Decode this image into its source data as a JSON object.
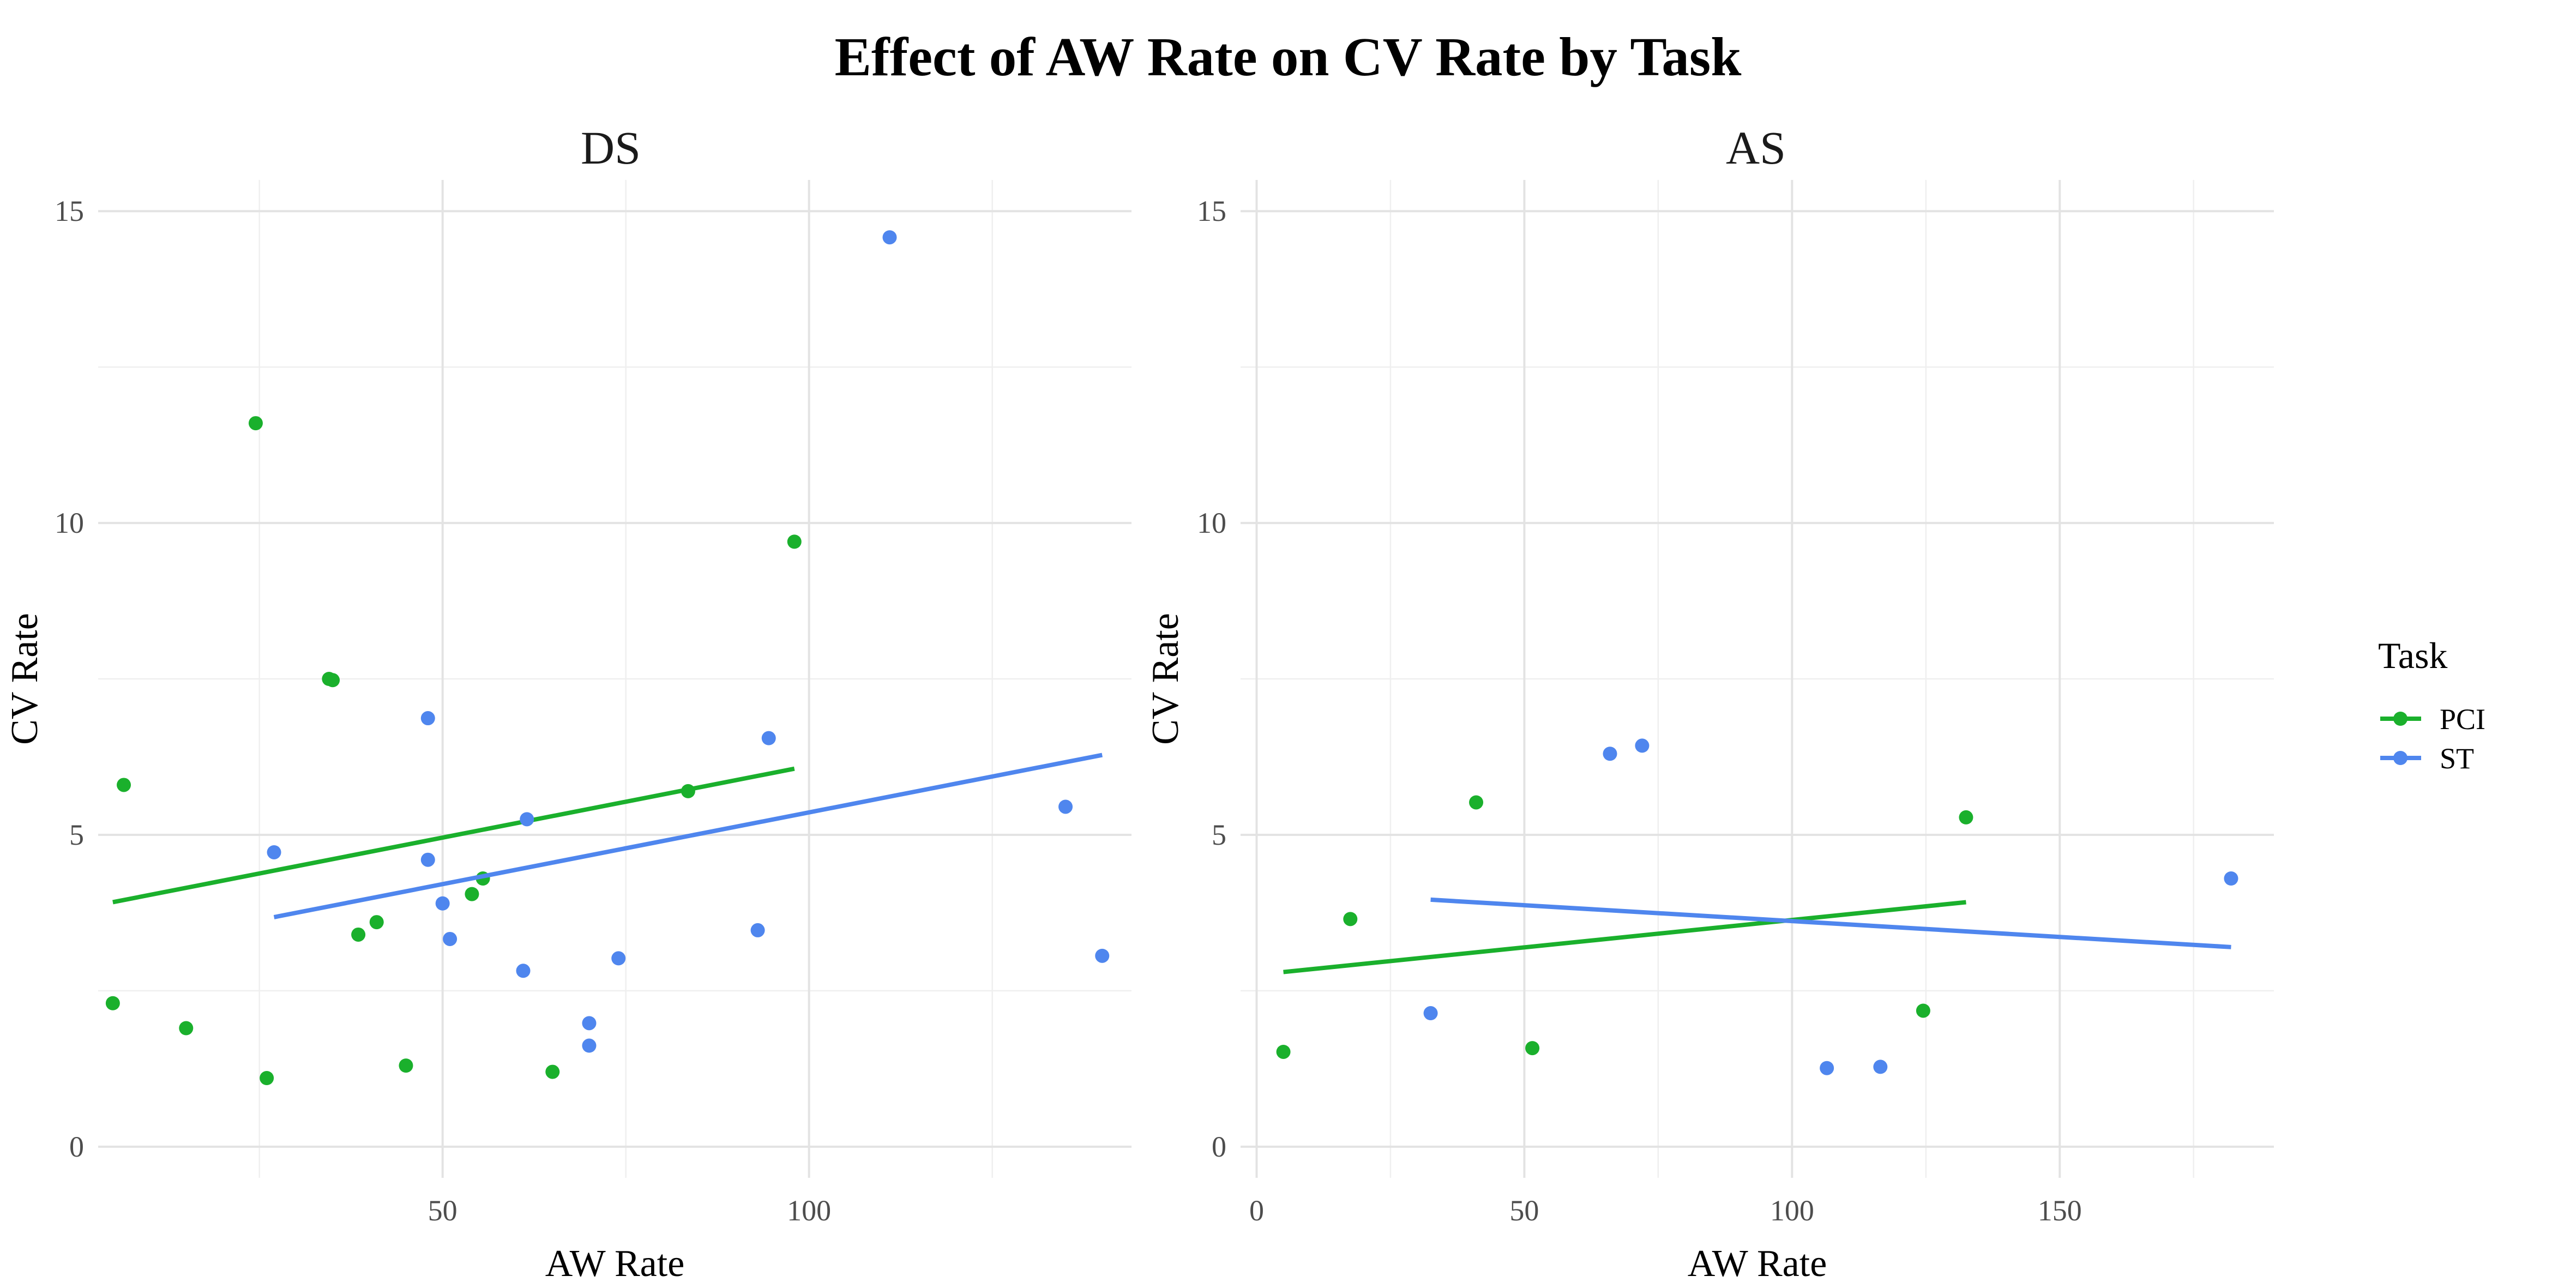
{
  "chart_data": {
    "type": "scatter",
    "title": "Effect of AW Rate on CV Rate by Task",
    "legend": {
      "title": "Task",
      "position": "right",
      "entries": [
        {
          "name": "PCI",
          "color": "#1ab02c"
        },
        {
          "name": "ST",
          "color": "#4f86ee"
        }
      ]
    },
    "grid": true,
    "panels": [
      {
        "label": "DS",
        "xlabel": "AW Rate",
        "ylabel": "CV Rate",
        "xlim": [
          3,
          144
        ],
        "ylim": [
          -0.5,
          15.5
        ],
        "xticks": [
          50,
          100
        ],
        "xminor": [
          25,
          75,
          125
        ],
        "yticks": [
          0,
          5,
          10,
          15
        ],
        "yminor": [
          2.5,
          7.5,
          12.5
        ],
        "series": [
          {
            "name": "PCI",
            "color": "#1ab02c",
            "points": [
              [
                5,
                2.3
              ],
              [
                6.5,
                5.8
              ],
              [
                15,
                1.9
              ],
              [
                24.5,
                11.6
              ],
              [
                26,
                1.1
              ],
              [
                34.5,
                7.5
              ],
              [
                35,
                7.48
              ],
              [
                38.5,
                3.4
              ],
              [
                41,
                3.6
              ],
              [
                45,
                1.3
              ],
              [
                54,
                4.05
              ],
              [
                55.5,
                4.3
              ],
              [
                65,
                1.2
              ],
              [
                83.5,
                5.7
              ],
              [
                98,
                9.7
              ]
            ],
            "trend": [
              [
                5,
                3.92
              ],
              [
                98,
                6.06
              ]
            ]
          },
          {
            "name": "ST",
            "color": "#4f86ee",
            "points": [
              [
                27,
                4.72
              ],
              [
                48,
                6.87
              ],
              [
                48,
                4.6
              ],
              [
                50,
                3.9
              ],
              [
                51,
                3.33
              ],
              [
                61,
                2.82
              ],
              [
                61.5,
                5.25
              ],
              [
                70,
                1.98
              ],
              [
                70,
                1.62
              ],
              [
                74,
                3.02
              ],
              [
                93,
                3.47
              ],
              [
                94.5,
                6.55
              ],
              [
                111,
                14.58
              ],
              [
                135,
                5.45
              ],
              [
                140,
                3.06
              ]
            ],
            "trend": [
              [
                27,
                3.68
              ],
              [
                140,
                6.28
              ]
            ]
          }
        ]
      },
      {
        "label": "AS",
        "xlabel": "AW Rate",
        "ylabel": "CV Rate",
        "xlim": [
          -3,
          190
        ],
        "ylim": [
          -0.5,
          15.5
        ],
        "xticks": [
          0,
          50,
          100,
          150
        ],
        "xminor": [
          25,
          75,
          125,
          175
        ],
        "yticks": [
          0,
          5,
          10,
          15
        ],
        "yminor": [
          2.5,
          7.5,
          12.5
        ],
        "series": [
          {
            "name": "PCI",
            "color": "#1ab02c",
            "points": [
              [
                5,
                1.52
              ],
              [
                17.5,
                3.65
              ],
              [
                41,
                5.52
              ],
              [
                51.5,
                1.58
              ],
              [
                124.5,
                2.18
              ],
              [
                132.5,
                5.28
              ]
            ],
            "trend": [
              [
                5,
                2.8
              ],
              [
                132.5,
                3.92
              ]
            ]
          },
          {
            "name": "ST",
            "color": "#4f86ee",
            "points": [
              [
                32.5,
                2.14
              ],
              [
                66,
                6.3
              ],
              [
                72,
                6.43
              ],
              [
                106.5,
                1.26
              ],
              [
                116.5,
                1.28
              ],
              [
                182,
                4.3
              ]
            ],
            "trend": [
              [
                32.5,
                3.96
              ],
              [
                182,
                3.2
              ]
            ]
          }
        ]
      }
    ]
  }
}
